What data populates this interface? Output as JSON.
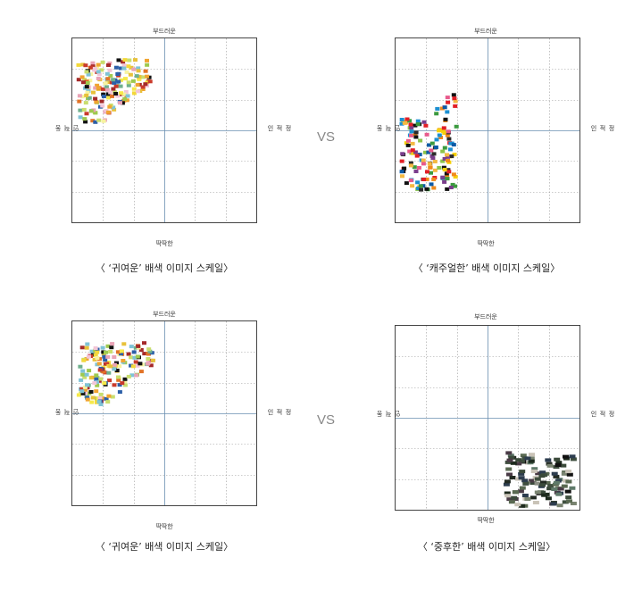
{
  "labels": {
    "top": "부드러운",
    "bottom": "딱딱한",
    "left": "동적인",
    "right": "정적인",
    "vs": "VS"
  },
  "panels": [
    {
      "caption": "〈 ‘귀여운’ 배색 이미지 스케일〉",
      "cluster": "upper-left",
      "style": "bright pastel"
    },
    {
      "caption": "〈 ‘캐주얼한’ 배색 이미지 스케일〉",
      "cluster": "left",
      "style": "vivid"
    },
    {
      "caption": "〈 ‘귀여운’ 배색 이미지 스케일〉",
      "cluster": "upper-left",
      "style": "bright pastel"
    },
    {
      "caption": "〈 ‘중후한’ 배색 이미지 스케일〉",
      "cluster": "lower-right",
      "style": "dark grayish"
    }
  ],
  "colors": {
    "cute": [
      "#f6e94a",
      "#f3d83a",
      "#e8c13a",
      "#f0a431",
      "#e27327",
      "#c93a2b",
      "#a52a2a",
      "#f7f3a0",
      "#c9de6e",
      "#9ec94f",
      "#7fc3d6",
      "#e9a3b6",
      "#f2c6d8",
      "#111111",
      "#2c5fa8",
      "#6fb08d"
    ],
    "casual": [
      "#e21f26",
      "#f08a1c",
      "#f6d10c",
      "#1c8fd1",
      "#111111",
      "#3c9a3f",
      "#8bc34a",
      "#e85a8c",
      "#f4b942",
      "#7a3d8c",
      "#2b2b2b",
      "#0c5aa6"
    ],
    "solemn": [
      "#111111",
      "#222a22",
      "#3a4a3a",
      "#2d3d4f",
      "#5a6a52",
      "#7a8471",
      "#4a3b46",
      "#1d2a1d",
      "#5f7a6a",
      "#8c8f85",
      "#c9c3b7",
      "#3f4f3f"
    ]
  }
}
